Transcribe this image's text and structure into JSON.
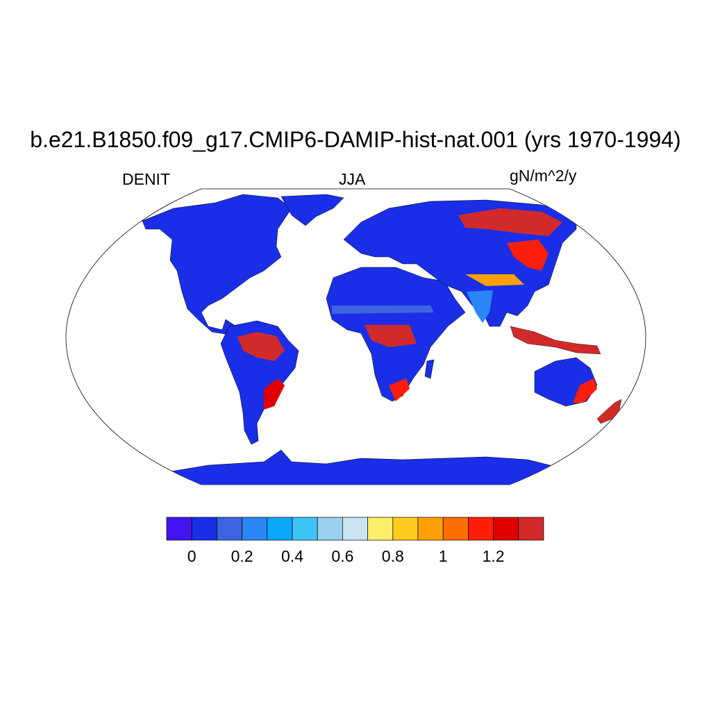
{
  "title": "b.e21.B1850.f09_g17.CMIP6-DAMIP-hist-nat.001 (yrs 1970-1994)",
  "subtitle_left": "DENIT",
  "subtitle_center": "JJA",
  "subtitle_right": "gN/m^2/y",
  "projection": "Robinson",
  "colorbar": {
    "colors": [
      "#4414ee",
      "#1a2ee8",
      "#3d63e0",
      "#2a86f5",
      "#0aa8f8",
      "#3dc3f5",
      "#98d0ee",
      "#c9e5f5",
      "#ffee6a",
      "#ffcb1f",
      "#ffa008",
      "#ff6e00",
      "#ff1e0a",
      "#e00000",
      "#d22a2a"
    ],
    "tick_labels": [
      "0",
      "0.2",
      "0.4",
      "0.6",
      "0.8",
      "1",
      "1.2"
    ],
    "tick_values": [
      0,
      0.2,
      0.4,
      0.6,
      0.8,
      1.0,
      1.2
    ],
    "levels": [
      0,
      0.1,
      0.2,
      0.3,
      0.4,
      0.5,
      0.6,
      0.7,
      0.8,
      0.9,
      1.0,
      1.1,
      1.2,
      1.3
    ]
  }
}
